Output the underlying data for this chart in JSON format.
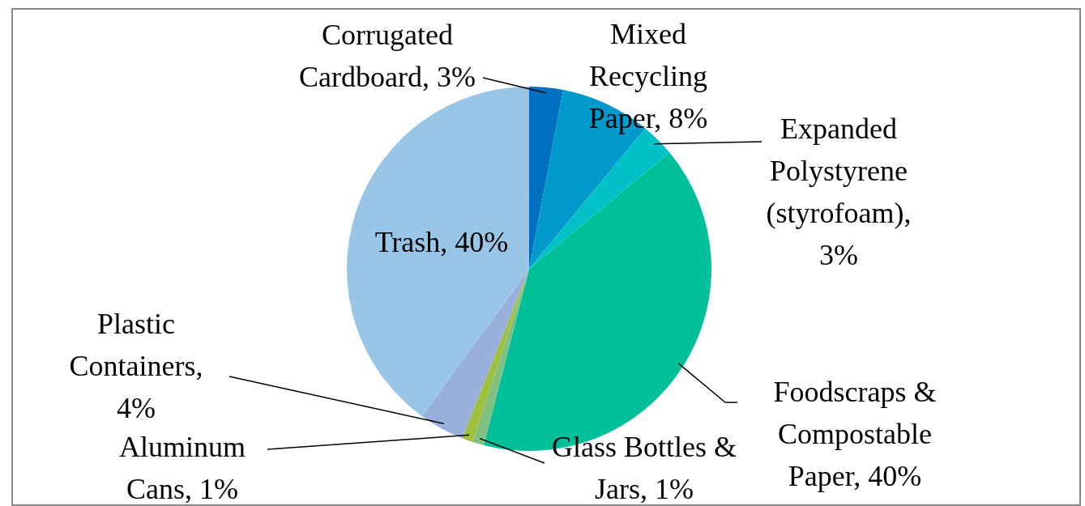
{
  "chart_data": {
    "type": "pie",
    "categories": [
      "Corrugated Cardboard, 3%",
      "Mixed Recycling Paper, 8%",
      "Expanded Polystyrene (styrofoam), 3%",
      "Foodscraps & Compostable Paper, 40%",
      "Glass Bottles & Jars, 1%",
      "Aluminum Cans, 1%",
      "Plastic Containers, 4%",
      "Trash, 40%"
    ],
    "values": [
      3,
      8,
      3,
      40,
      1,
      1,
      4,
      40
    ],
    "colors": [
      "#0070c0",
      "#0099cc",
      "#00c0c8",
      "#00c099",
      "#80c080",
      "#a0c040",
      "#99b0dd",
      "#99c6e6"
    ],
    "legend": false
  }
}
